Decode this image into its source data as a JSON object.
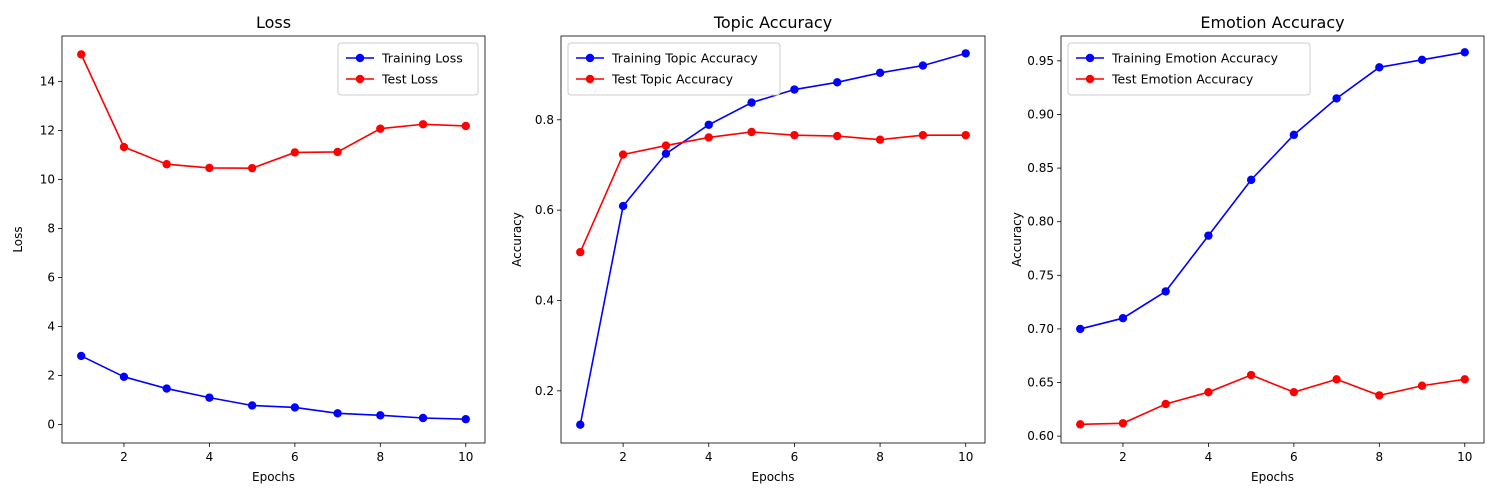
{
  "chart_data": [
    {
      "type": "line",
      "title": "Loss",
      "xlabel": "Epochs",
      "ylabel": "Loss",
      "x": [
        1,
        2,
        3,
        4,
        5,
        6,
        7,
        8,
        9,
        10
      ],
      "xlim": [
        0.55,
        10.45
      ],
      "ylim": [
        -0.75,
        15.85
      ],
      "xticks": [
        2,
        4,
        6,
        8,
        10
      ],
      "yticks": [
        0,
        2,
        4,
        6,
        8,
        10,
        12,
        14
      ],
      "yticklabels": [
        "0",
        "2",
        "4",
        "6",
        "8",
        "10",
        "12",
        "14"
      ],
      "grid": false,
      "legend": "upper right",
      "series": [
        {
          "name": "Training Loss",
          "color": "#0000ff",
          "values": [
            2.8,
            1.95,
            1.47,
            1.1,
            0.78,
            0.7,
            0.46,
            0.38,
            0.27,
            0.22
          ]
        },
        {
          "name": "Test Loss",
          "color": "#ff0000",
          "values": [
            15.1,
            11.32,
            10.62,
            10.47,
            10.46,
            11.1,
            11.12,
            12.07,
            12.25,
            12.18
          ]
        }
      ]
    },
    {
      "type": "line",
      "title": "Topic Accuracy",
      "xlabel": "Epochs",
      "ylabel": "Accuracy",
      "x": [
        1,
        2,
        3,
        4,
        5,
        6,
        7,
        8,
        9,
        10
      ],
      "xlim": [
        0.55,
        10.45
      ],
      "ylim": [
        0.0845,
        0.9855
      ],
      "xticks": [
        2,
        4,
        6,
        8,
        10
      ],
      "yticks": [
        0.2,
        0.4,
        0.6,
        0.8
      ],
      "yticklabels": [
        "0.2",
        "0.4",
        "0.6",
        "0.8"
      ],
      "grid": false,
      "legend": "upper left",
      "series": [
        {
          "name": "Training Topic Accuracy",
          "color": "#0000ff",
          "values": [
            0.125,
            0.609,
            0.725,
            0.789,
            0.838,
            0.867,
            0.883,
            0.904,
            0.92,
            0.947
          ]
        },
        {
          "name": "Test Topic Accuracy",
          "color": "#ff0000",
          "values": [
            0.507,
            0.723,
            0.743,
            0.761,
            0.773,
            0.766,
            0.764,
            0.756,
            0.766,
            0.766
          ]
        }
      ]
    },
    {
      "type": "line",
      "title": "Emotion Accuracy",
      "xlabel": "Epochs",
      "ylabel": "Accuracy",
      "x": [
        1,
        2,
        3,
        4,
        5,
        6,
        7,
        8,
        9,
        10
      ],
      "xlim": [
        0.55,
        10.45
      ],
      "ylim": [
        0.5936,
        0.9732
      ],
      "xticks": [
        2,
        4,
        6,
        8,
        10
      ],
      "yticks": [
        0.6,
        0.65,
        0.7,
        0.75,
        0.8,
        0.85,
        0.9,
        0.95
      ],
      "yticklabels": [
        "0.60",
        "0.65",
        "0.70",
        "0.75",
        "0.80",
        "0.85",
        "0.90",
        "0.95"
      ],
      "grid": false,
      "legend": "upper left",
      "series": [
        {
          "name": "Training Emotion Accuracy",
          "color": "#0000ff",
          "values": [
            0.7,
            0.71,
            0.735,
            0.787,
            0.839,
            0.881,
            0.915,
            0.944,
            0.951,
            0.958
          ]
        },
        {
          "name": "Test Emotion Accuracy",
          "color": "#ff0000",
          "values": [
            0.611,
            0.612,
            0.63,
            0.641,
            0.657,
            0.641,
            0.653,
            0.638,
            0.647,
            0.653
          ]
        }
      ]
    }
  ]
}
